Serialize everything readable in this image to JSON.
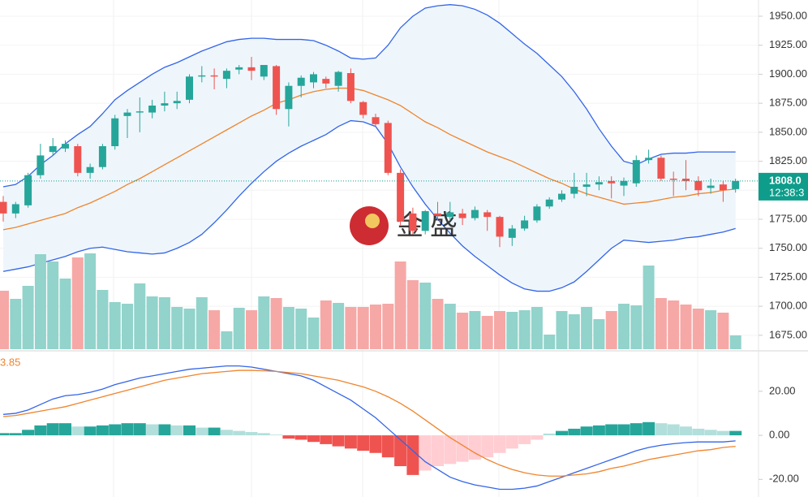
{
  "chart_data": [
    {
      "type": "candlestick",
      "open": [
        1790,
        1780,
        1787,
        1813,
        1833,
        1836,
        1838,
        1815,
        1820,
        1838,
        1864,
        1867,
        1867,
        1873,
        1875,
        1878,
        1898,
        1899,
        1896,
        1904,
        1906,
        1898,
        1907,
        1870,
        1890,
        1893,
        1896,
        1890,
        1901,
        1876,
        1863,
        1858,
        1815,
        1780,
        1765,
        1780,
        1777,
        1780,
        1776,
        1781,
        1777,
        1759,
        1767,
        1774,
        1786,
        1792,
        1797,
        1803,
        1805,
        1808,
        1804,
        1806,
        1826,
        1828,
        1810,
        1810,
        1808,
        1802,
        1805,
        1801
      ],
      "high": [
        1795,
        1790,
        1815,
        1840,
        1845,
        1843,
        1840,
        1823,
        1840,
        1865,
        1870,
        1880,
        1878,
        1885,
        1885,
        1900,
        1907,
        1905,
        1905,
        1908,
        1915,
        1908,
        1908,
        1893,
        1899,
        1902,
        1898,
        1903,
        1905,
        1877,
        1866,
        1860,
        1818,
        1785,
        1783,
        1790,
        1790,
        1784,
        1786,
        1783,
        1778,
        1770,
        1778,
        1788,
        1794,
        1800,
        1815,
        1815,
        1812,
        1812,
        1811,
        1830,
        1835,
        1830,
        1816,
        1826,
        1812,
        1810,
        1808,
        1810
      ],
      "low": [
        1773,
        1776,
        1785,
        1810,
        1830,
        1833,
        1812,
        1810,
        1818,
        1835,
        1845,
        1850,
        1862,
        1868,
        1870,
        1875,
        1893,
        1887,
        1888,
        1900,
        1895,
        1895,
        1865,
        1855,
        1880,
        1888,
        1888,
        1885,
        1875,
        1862,
        1855,
        1813,
        1770,
        1762,
        1762,
        1774,
        1774,
        1770,
        1774,
        1765,
        1751,
        1752,
        1765,
        1772,
        1784,
        1790,
        1793,
        1795,
        1800,
        1793,
        1795,
        1803,
        1823,
        1808,
        1795,
        1800,
        1795,
        1797,
        1790,
        1798
      ],
      "close": [
        1780,
        1788,
        1813,
        1830,
        1838,
        1840,
        1815,
        1820,
        1838,
        1862,
        1867,
        1868,
        1873,
        1875,
        1877,
        1898,
        1899,
        1898,
        1903,
        1906,
        1903,
        1908,
        1870,
        1890,
        1897,
        1900,
        1892,
        1902,
        1877,
        1865,
        1857,
        1815,
        1773,
        1765,
        1782,
        1778,
        1781,
        1776,
        1783,
        1777,
        1760,
        1767,
        1774,
        1786,
        1792,
        1797,
        1803,
        1805,
        1807,
        1806,
        1808,
        1826,
        1828,
        1810,
        1809,
        1808,
        1800,
        1804,
        1800,
        1808
      ],
      "up_color": "#26a69a",
      "down_color": "#ef5350",
      "series": [
        {
          "color": "#3465e8",
          "values": [
            1803,
            1805,
            1812,
            1822,
            1830,
            1840,
            1848,
            1855,
            1866,
            1878,
            1886,
            1893,
            1900,
            1906,
            1910,
            1915,
            1920,
            1924,
            1928,
            1930,
            1931,
            1931,
            1930,
            1930,
            1930,
            1929,
            1925,
            1920,
            1914,
            1913,
            1914,
            1925,
            1940,
            1950,
            1957,
            1959,
            1960,
            1959,
            1956,
            1951,
            1944,
            1935,
            1926,
            1918,
            1908,
            1898,
            1885,
            1870,
            1853,
            1838,
            1825,
            1822,
            1827,
            1831,
            1832,
            1832,
            1833,
            1833,
            1833,
            1833
          ]
        },
        {
          "color": "#f0842c",
          "values": [
            1766,
            1768,
            1771,
            1774,
            1777,
            1780,
            1785,
            1789,
            1794,
            1799,
            1805,
            1810,
            1816,
            1822,
            1828,
            1834,
            1840,
            1846,
            1852,
            1858,
            1864,
            1869,
            1875,
            1878,
            1882,
            1885,
            1887,
            1888,
            1888,
            1886,
            1882,
            1878,
            1873,
            1866,
            1859,
            1854,
            1848,
            1843,
            1838,
            1833,
            1829,
            1825,
            1820,
            1815,
            1810,
            1806,
            1801,
            1797,
            1794,
            1791,
            1788,
            1789,
            1790,
            1792,
            1794,
            1795,
            1797,
            1798,
            1800,
            1801
          ]
        },
        {
          "color": "#3465e8",
          "values": [
            1730,
            1732,
            1734,
            1737,
            1740,
            1743,
            1747,
            1750,
            1751,
            1749,
            1747,
            1746,
            1745,
            1746,
            1750,
            1755,
            1762,
            1772,
            1783,
            1795,
            1806,
            1816,
            1825,
            1832,
            1838,
            1843,
            1848,
            1855,
            1860,
            1859,
            1855,
            1840,
            1820,
            1803,
            1788,
            1775,
            1763,
            1752,
            1743,
            1735,
            1727,
            1720,
            1715,
            1713,
            1713,
            1716,
            1721,
            1730,
            1740,
            1750,
            1757,
            1756,
            1755,
            1756,
            1757,
            1759,
            1760,
            1762,
            1764,
            1767
          ]
        }
      ],
      "band_fill": "#eef6fc",
      "ylim": [
        1663,
        1964
      ],
      "yticks": [
        {
          "value": 1675,
          "label": "1675.00"
        },
        {
          "value": 1700,
          "label": "1700.00"
        },
        {
          "value": 1725,
          "label": "1725.00"
        },
        {
          "value": 1750,
          "label": "1750.00"
        },
        {
          "value": 1775,
          "label": "1775.00"
        },
        {
          "value": 1800,
          "label": "1800.00"
        },
        {
          "value": 1825,
          "label": "1825.00"
        },
        {
          "value": 1850,
          "label": "1850.00"
        },
        {
          "value": 1875,
          "label": "1875.00"
        },
        {
          "value": 1900,
          "label": "1900.00"
        },
        {
          "value": 1925,
          "label": "1925.00"
        },
        {
          "value": 1950,
          "label": "1950.00"
        }
      ],
      "grid": true,
      "last_price": {
        "value": 1808,
        "label": "1808.0"
      },
      "last_time": "12:38:3",
      "last_color": "#0e9d8a",
      "watermark": "金盛"
    },
    {
      "type": "volume",
      "values": [
        72,
        62,
        78,
        117,
        108,
        87,
        113,
        118,
        73,
        58,
        56,
        81,
        65,
        64,
        52,
        50,
        64,
        48,
        22,
        51,
        48,
        65,
        63,
        52,
        50,
        39,
        60,
        57,
        52,
        52,
        55,
        56,
        108,
        85,
        82,
        62,
        56,
        45,
        47,
        41,
        47,
        46,
        48,
        52,
        18,
        47,
        43,
        52,
        37,
        47,
        56,
        54,
        103,
        63,
        60,
        55,
        50,
        48,
        45,
        17
      ],
      "ylim": [
        0,
        120
      ],
      "up_color": "#92d3cb",
      "down_color": "#f6a8a6"
    },
    {
      "type": "macd",
      "annotation": "3.85",
      "annotation_color": "#f0842c",
      "series": [
        {
          "color": "#3465e8",
          "values": [
            9.5,
            10,
            11.5,
            14,
            16.5,
            18,
            18.5,
            19.5,
            21,
            23,
            24.5,
            26,
            27,
            28,
            29,
            30,
            30.5,
            31,
            31.5,
            31.5,
            31,
            30,
            29,
            28,
            27,
            25,
            22,
            19,
            16,
            12,
            8,
            3,
            -2,
            -7,
            -12,
            -15.5,
            -19,
            -21,
            -22.5,
            -23.5,
            -24.5,
            -24.5,
            -24,
            -23,
            -21,
            -19,
            -17,
            -15,
            -13,
            -11,
            -9,
            -7,
            -5.5,
            -4.5,
            -3.8,
            -3.3,
            -3,
            -3,
            -3,
            -2.5
          ]
        },
        {
          "color": "#f0842c",
          "values": [
            8.5,
            9,
            10,
            11,
            12,
            13,
            14.5,
            16,
            17.5,
            19,
            20.5,
            22,
            23.5,
            25,
            26,
            27,
            28,
            28.5,
            29,
            29.5,
            29.5,
            29.3,
            29,
            28.5,
            28,
            27,
            26,
            25,
            23.5,
            22,
            20,
            17.5,
            14.5,
            11,
            7,
            3,
            -1,
            -4.5,
            -8,
            -11,
            -13.5,
            -15.5,
            -17,
            -18,
            -18.5,
            -18.5,
            -18,
            -17.5,
            -16.5,
            -15,
            -14,
            -12.5,
            -11,
            -10,
            -9,
            -8,
            -7,
            -6.5,
            -5.5,
            -5
          ]
        }
      ],
      "histogram": [
        1,
        1,
        2.5,
        4.5,
        5.5,
        5.5,
        4,
        4,
        4.5,
        5,
        5.5,
        5.5,
        5,
        5,
        4.5,
        4.5,
        3.5,
        3.5,
        2.5,
        2,
        1.5,
        1,
        0.3,
        -1.5,
        -2,
        -3,
        -4,
        -5,
        -6,
        -7,
        -8,
        -10,
        -14,
        -18,
        -16,
        -14,
        -13,
        -12,
        -11,
        -10,
        -8,
        -6,
        -4,
        -2,
        0.8,
        2,
        3,
        4,
        4.5,
        5,
        5,
        5.5,
        6,
        5.5,
        5,
        4,
        3,
        2.5,
        2,
        2
      ],
      "hist_colors": [
        "#26a69a",
        "#b2dfdb",
        "#ef5350",
        "#ffcdd2"
      ],
      "ylim": [
        -28,
        38
      ],
      "yticks": [
        {
          "value": -20,
          "label": "-20.00"
        },
        {
          "value": 0,
          "label": "0.00"
        },
        {
          "value": 20,
          "label": "20.00"
        }
      ]
    }
  ]
}
